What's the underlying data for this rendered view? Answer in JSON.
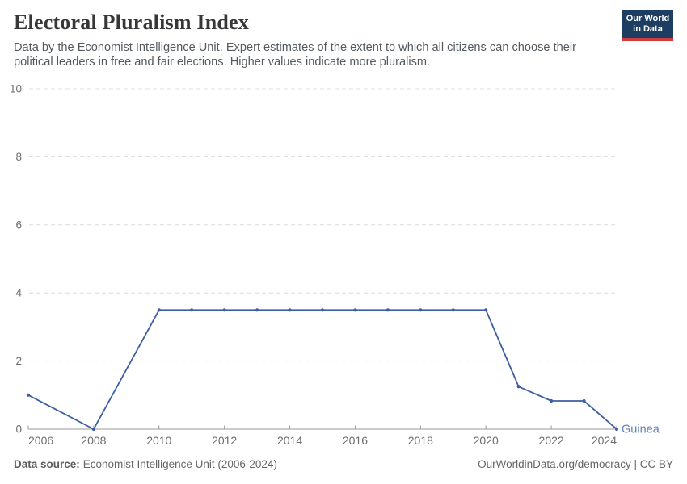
{
  "header": {
    "logo": {
      "line1": "Our World",
      "line2": "in Data"
    }
  },
  "chart_data": {
    "type": "line",
    "title": "Electoral Pluralism Index",
    "subtitle": "Data by the Economist Intelligence Unit. Expert estimates of the extent to which all citizens can choose their political leaders in free and fair elections. Higher values indicate more pluralism.",
    "x": [
      2006,
      2008,
      2010,
      2011,
      2012,
      2013,
      2014,
      2015,
      2016,
      2017,
      2018,
      2019,
      2020,
      2021,
      2022,
      2023,
      2024
    ],
    "series": [
      {
        "name": "Guinea",
        "values": [
          1,
          0,
          3.5,
          3.5,
          3.5,
          3.5,
          3.5,
          3.5,
          3.5,
          3.5,
          3.5,
          3.5,
          3.5,
          1.25,
          0.83,
          0.83,
          0
        ]
      }
    ],
    "xlim": [
      2006,
      2024
    ],
    "ylim": [
      0,
      10
    ],
    "x_ticks": [
      2006,
      2008,
      2010,
      2012,
      2014,
      2016,
      2018,
      2020,
      2022,
      2024
    ],
    "y_ticks": [
      0,
      2,
      4,
      6,
      8,
      10
    ],
    "grid": "horizontal-dashed",
    "legend_position": "end-of-line-label",
    "xlabel": "",
    "ylabel": ""
  },
  "footer": {
    "source_label": "Data source:",
    "source_value": "Economist Intelligence Unit (2006-2024)",
    "rights": "OurWorldinData.org/democracy | CC BY"
  },
  "colors": {
    "line": "#3d5fa2",
    "entity_label": "#6080ba",
    "grid": "#dcdcdc",
    "axis": "#9a9a9a",
    "tick_label": "#6e6e6e",
    "title": "#373737",
    "subtitle": "#53595e",
    "footer": "#666666",
    "logo_bg": "#1d3d63",
    "logo_stripe": "#d13b3b"
  }
}
